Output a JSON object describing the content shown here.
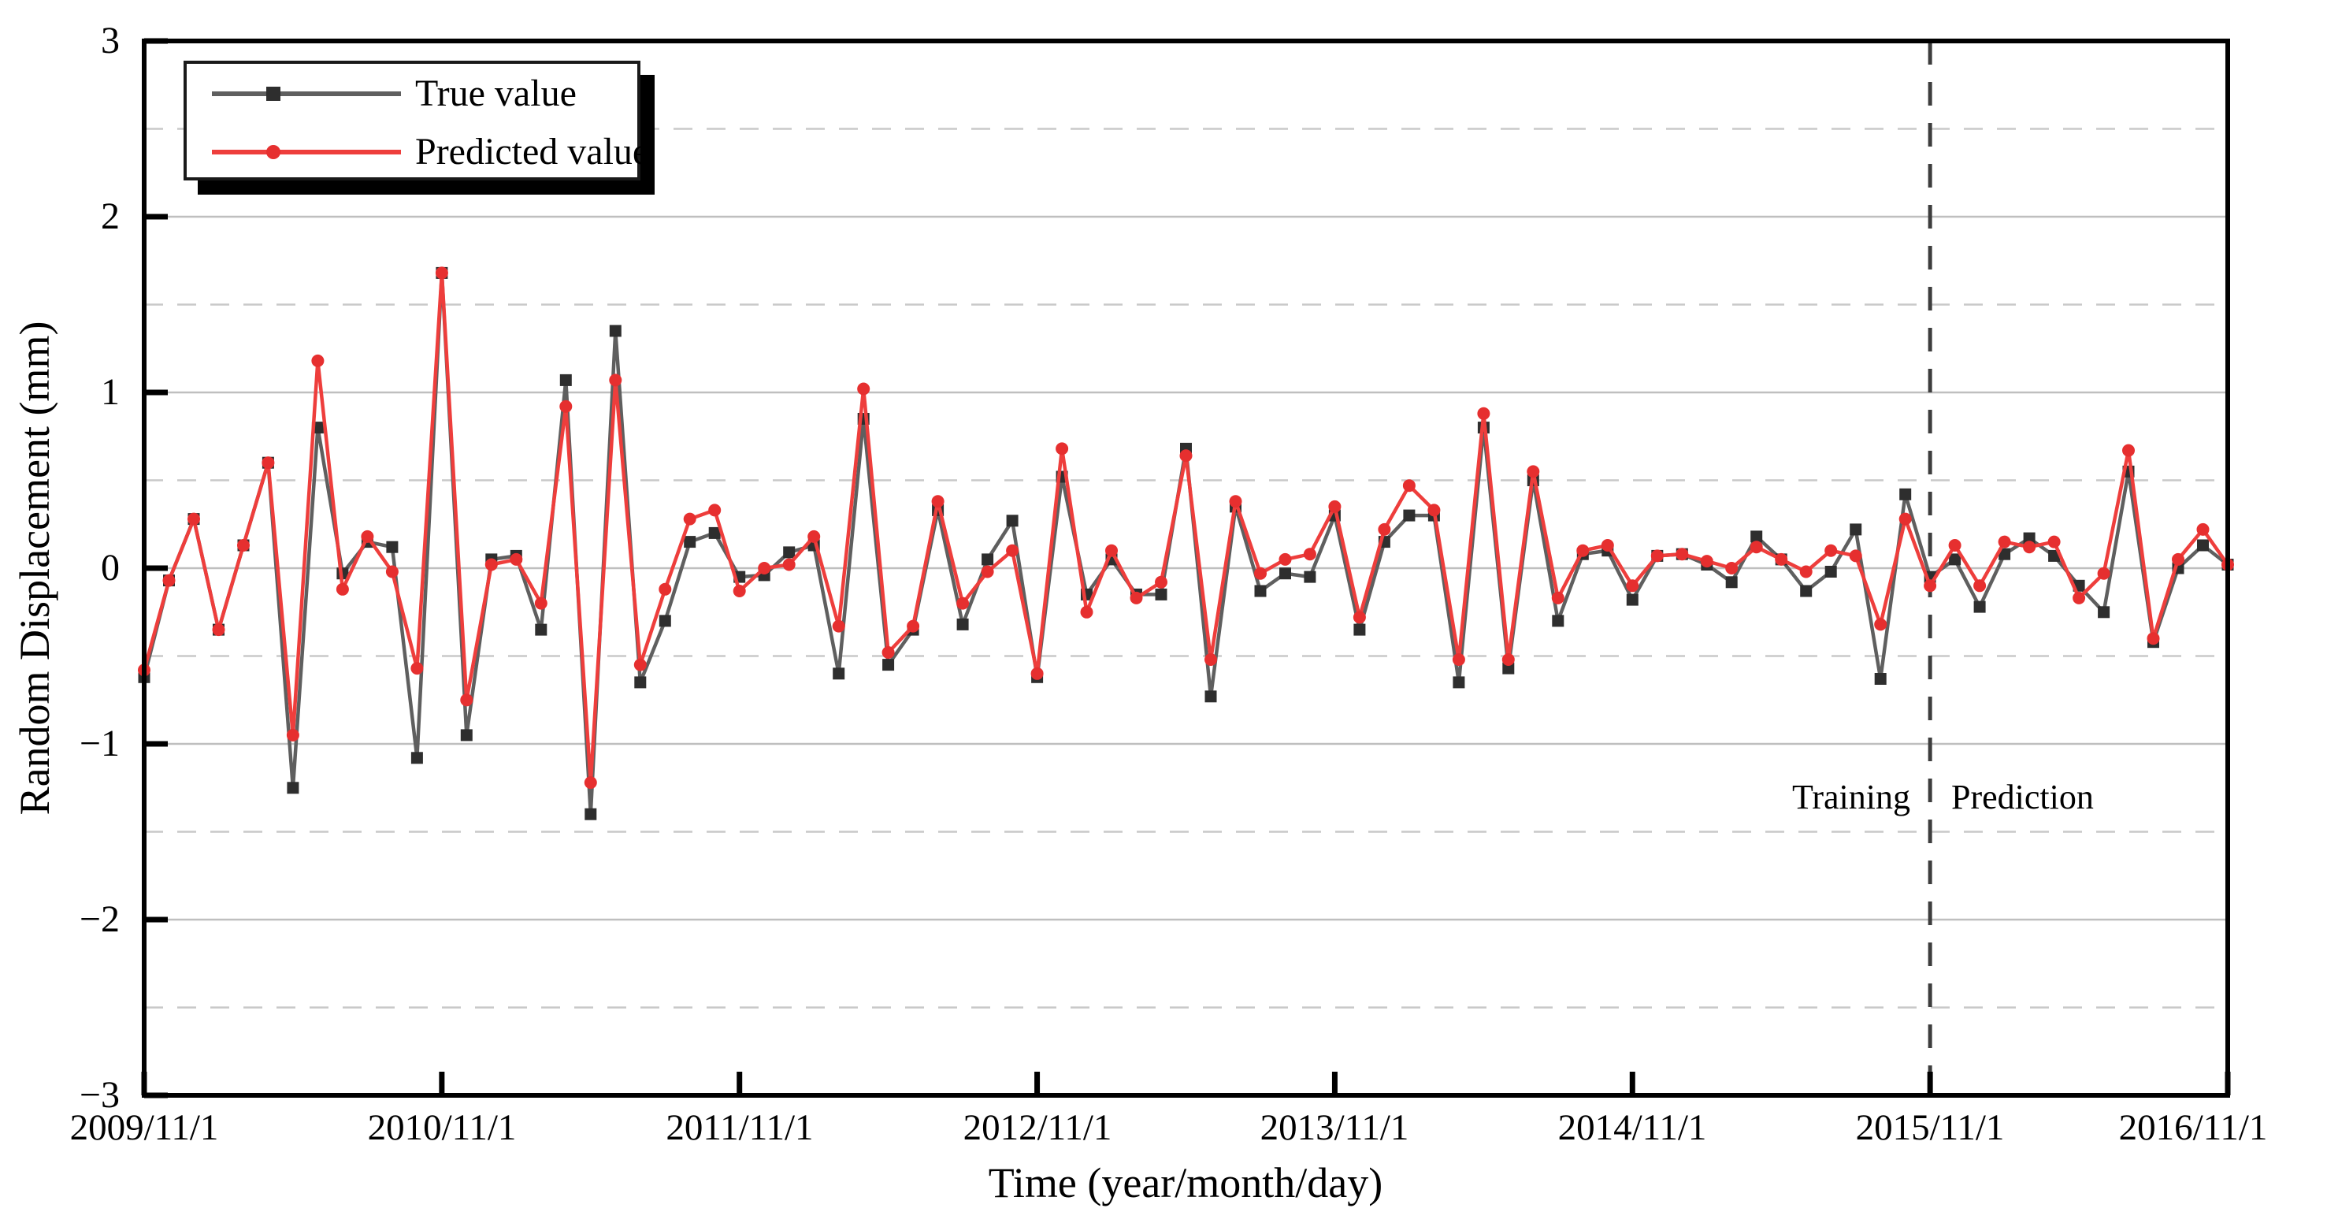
{
  "chart_data": {
    "type": "line",
    "title": "",
    "xlabel": "Time (year/month/day)",
    "ylabel": "Random Displacement (mm)",
    "x_tick_labels": [
      "2009/11/1",
      "2010/11/1",
      "2011/11/1",
      "2012/11/1",
      "2013/11/1",
      "2014/11/1",
      "2015/11/1",
      "2016/11/1"
    ],
    "y_tick_labels": [
      "3",
      "2",
      "1",
      "0",
      "−1",
      "−2",
      "−3"
    ],
    "ylim": [
      -3,
      3
    ],
    "y_solid_gridlines": [
      -2,
      -1,
      0,
      1,
      2
    ],
    "y_dashed_gridlines": [
      -2.5,
      -1.5,
      -0.5,
      0.5,
      1.5,
      2.5
    ],
    "points_per_x_tick": 12,
    "n_points": 85,
    "divider_index": 72,
    "divider_date": "2015/11/1",
    "legend_position": "top-left",
    "grid": "on",
    "annotations": {
      "training": "Training",
      "prediction": "Prediction"
    },
    "series": [
      {
        "name": "True value",
        "marker": "square",
        "line_color": "#5f5f5f",
        "marker_color": "#2e2e2e",
        "values": [
          -0.62,
          -0.07,
          0.28,
          -0.35,
          0.13,
          0.6,
          -1.25,
          0.8,
          -0.03,
          0.15,
          0.12,
          -1.08,
          1.68,
          -0.95,
          0.05,
          0.07,
          -0.35,
          1.07,
          -1.4,
          1.35,
          -0.65,
          -0.3,
          0.15,
          0.2,
          -0.05,
          -0.04,
          0.09,
          0.13,
          -0.6,
          0.85,
          -0.55,
          -0.35,
          0.33,
          -0.32,
          0.05,
          0.27,
          -0.62,
          0.52,
          -0.15,
          0.05,
          -0.15,
          -0.15,
          0.68,
          -0.73,
          0.35,
          -0.13,
          -0.03,
          -0.05,
          0.3,
          -0.35,
          0.15,
          0.3,
          0.3,
          -0.65,
          0.8,
          -0.57,
          0.5,
          -0.3,
          0.08,
          0.1,
          -0.18,
          0.07,
          0.08,
          0.02,
          -0.08,
          0.18,
          0.05,
          -0.13,
          -0.02,
          0.22,
          -0.63,
          0.42,
          -0.05,
          0.05,
          -0.22,
          0.08,
          0.17,
          0.07,
          -0.1,
          -0.25,
          0.55,
          -0.42,
          0.0,
          0.13,
          0.02
        ]
      },
      {
        "name": "Predicted value",
        "marker": "circle",
        "line_color": "#ee3e3c",
        "marker_color": "#e62f2f",
        "values": [
          -0.58,
          -0.07,
          0.28,
          -0.35,
          0.13,
          0.6,
          -0.95,
          1.18,
          -0.12,
          0.18,
          -0.02,
          -0.57,
          1.68,
          -0.75,
          0.02,
          0.05,
          -0.2,
          0.92,
          -1.22,
          1.07,
          -0.55,
          -0.12,
          0.28,
          0.33,
          -0.13,
          0.0,
          0.02,
          0.18,
          -0.33,
          1.02,
          -0.48,
          -0.33,
          0.38,
          -0.2,
          -0.02,
          0.1,
          -0.6,
          0.68,
          -0.25,
          0.1,
          -0.17,
          -0.08,
          0.64,
          -0.52,
          0.38,
          -0.03,
          0.05,
          0.08,
          0.35,
          -0.28,
          0.22,
          0.47,
          0.33,
          -0.52,
          0.88,
          -0.52,
          0.55,
          -0.17,
          0.1,
          0.13,
          -0.1,
          0.07,
          0.08,
          0.04,
          0.0,
          0.12,
          0.05,
          -0.02,
          0.1,
          0.07,
          -0.32,
          0.28,
          -0.1,
          0.13,
          -0.1,
          0.15,
          0.12,
          0.15,
          -0.17,
          -0.03,
          0.67,
          -0.4,
          0.05,
          0.22,
          0.02
        ]
      }
    ]
  }
}
